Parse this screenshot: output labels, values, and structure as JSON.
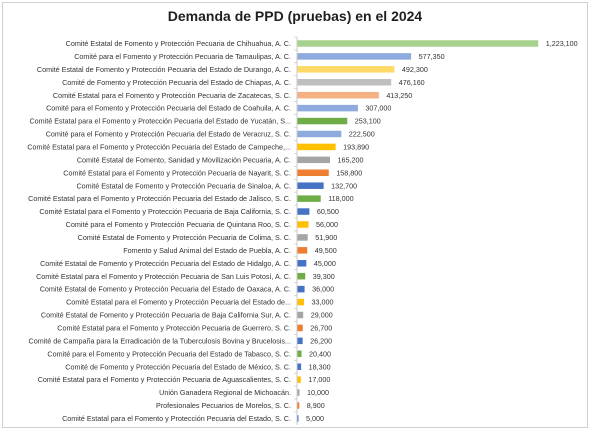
{
  "chart_data": {
    "type": "bar",
    "orientation": "horizontal",
    "title": "Demanda de PPD (pruebas) en el 2024",
    "xlabel": "",
    "ylabel": "",
    "grid": false,
    "legend": "none",
    "xlim": [
      0,
      1250000
    ],
    "categories": [
      "Comité Estatal de Fomento y Protección Pecuaria de Chihuahua, A. C.",
      "Comité para el Fomento y Protección Pecuaria de Tamaulipas, A. C.",
      "Comité Estatal de Fomento y Protección Pecuaria del Estado de Durango, A. C.",
      "Comité de Fomento y Protección Pecuaria del Estado de Chiapas, A. C.",
      "Comité Estatal para el Fomento y Protección Pecuaria de Zacatecas, S. C.",
      "Comité para el Fomento y Protección Pecuaria del Estado de Coahuila, A. C.",
      "Comité Estatal para el Fomento y Protección Pecuaria del Estado de Yucatán, S...",
      "Comité para el Fomento y Protección Pecuaria del Estado de Veracruz, S. C.",
      "Comité Estatal para el Fomento y Protección Pecuaria del Estado de Campeche,...",
      "Comité Estatal de Fomento, Sanidad y Movilización Pecuaria, A. C.",
      "Comité Estatal para el Fomento y Protección Pecuaria de Nayarit, S. C.",
      "Comité Estatal de Fomento y Protección Pecuaria de Sinaloa, A. C.",
      "Comité Estatal para el Fomento y Protección Pecuaria del Estado de Jalisco, S. C.",
      "Comité Estatal para el Fomento y Protección Pecuaria de Baja California, S. C.",
      "Comité para el Fomento y Protección Pecuaria de Quintana Roo, S. C.",
      "Comité Estatal de Fomento y Protección Pecuaria de Colima, S. C.",
      "Fomento y Salud Animal del Estado de Puebla, A. C.",
      "Comité Estatal de Fomento y Protección Pecuaria del Estado de Hidalgo, A. C.",
      "Comité Estatal para el Fomento y Protección Pecuaria de San Luis Potosí, A. C.",
      "Comité Estatal de Fomento y Protección Pecuaria del Estado de Oaxaca, A. C.",
      "Comité Estatal para el Fomento y Protección Pecuaria del Estado de...",
      "Comité Estatal de Fomento y Protección Pecuaria de Baja California Sur, A. C.",
      "Comité Estatal para el Fomento y Protección Pecuaria de Guerrero, S. C.",
      "Comité de Campaña para la Erradicación de la Tuberculosis Bovina y Brucelosis...",
      "Comité para el Fomento y Protección Pecuaria del Estado de Tabasco, S. C.",
      "Comité de Fomento y Protección Pecuaria del Estado de México, S. C.",
      "Comité Estatal para el Fomento y Protección Pecuaria de Aguascalientes, S. C.",
      "Unión Ganadera Regional de Michoacán.",
      "Profesionales Pecuarios de Morelos, S. C.",
      "Comité Estatal para el Fomento y Protección Pecuaria del Estado, S. C."
    ],
    "values": [
      1223100,
      577350,
      492300,
      476160,
      413250,
      307000,
      253100,
      222500,
      193890,
      165200,
      158800,
      132700,
      118000,
      60500,
      56000,
      51900,
      49500,
      45000,
      39300,
      36000,
      33000,
      29000,
      26700,
      26200,
      20400,
      18300,
      17000,
      10000,
      8900,
      5000
    ],
    "value_labels": [
      "1,223,100",
      "577,350",
      "492,300",
      "476,160",
      "413,250",
      "307,000",
      "253,100",
      "222,500",
      "193,890",
      "165,200",
      "158,800",
      "132,700",
      "118,000",
      "60,500",
      "56,000",
      "51,900",
      "49,500",
      "45,000",
      "39,300",
      "36,000",
      "33,000",
      "29,000",
      "26,700",
      "26,200",
      "20,400",
      "18,300",
      "17,000",
      "10,000",
      "8,900",
      "5,000"
    ],
    "colors": [
      "#a9d18e",
      "#8faadc",
      "#ffd966",
      "#bfbfbf",
      "#f4b183",
      "#8faadc",
      "#70ad47",
      "#8faadc",
      "#ffc000",
      "#a5a5a5",
      "#ed7d31",
      "#4472c4",
      "#70ad47",
      "#4472c4",
      "#ffc000",
      "#a5a5a5",
      "#ed7d31",
      "#4472c4",
      "#70ad47",
      "#4472c4",
      "#ffc000",
      "#a5a5a5",
      "#ed7d31",
      "#4472c4",
      "#70ad47",
      "#4472c4",
      "#ffc000",
      "#a5a5a5",
      "#ed7d31",
      "#4472c4"
    ]
  }
}
